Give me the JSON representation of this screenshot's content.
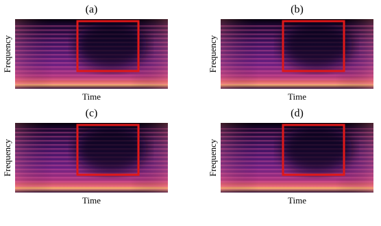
{
  "panels": [
    {
      "label": "(a)",
      "x_label": "Time",
      "y_label": "Frequency"
    },
    {
      "label": "(b)",
      "x_label": "Time",
      "y_label": "Frequency"
    },
    {
      "label": "(c)",
      "x_label": "Time",
      "y_label": "Frequency"
    },
    {
      "label": "(d)",
      "x_label": "Time",
      "y_label": "Frequency"
    }
  ]
}
